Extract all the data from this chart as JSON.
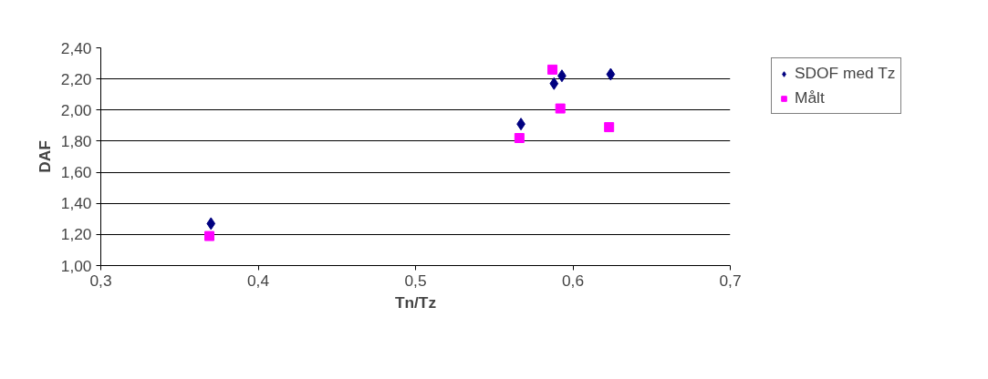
{
  "chart_data": {
    "type": "scatter",
    "xlabel": "Tn/Tz",
    "ylabel": "DAF",
    "xlim": [
      0.3,
      0.7
    ],
    "xticks": [
      {
        "value": 0.3,
        "label": "0,3"
      },
      {
        "value": 0.4,
        "label": "0,4"
      },
      {
        "value": 0.5,
        "label": "0,5"
      },
      {
        "value": 0.6,
        "label": "0,6"
      },
      {
        "value": 0.7,
        "label": "0,7"
      }
    ],
    "ylim": [
      1.0,
      2.4
    ],
    "yticks": [
      {
        "value": 1.0,
        "label": "1,00"
      },
      {
        "value": 1.2,
        "label": "1,20"
      },
      {
        "value": 1.4,
        "label": "1,40"
      },
      {
        "value": 1.6,
        "label": "1,60"
      },
      {
        "value": 1.8,
        "label": "1,80"
      },
      {
        "value": 2.0,
        "label": "2,00"
      },
      {
        "value": 2.2,
        "label": "2,20"
      },
      {
        "value": 2.4,
        "label": "2,40"
      }
    ],
    "grid": "y",
    "legend": "right",
    "series": [
      {
        "name": "SDOF med Tz",
        "color": "#000080",
        "marker": "diamond",
        "x": [
          0.37,
          0.567,
          0.588,
          0.593,
          0.624
        ],
        "values": [
          1.27,
          1.91,
          2.17,
          2.22,
          2.23
        ]
      },
      {
        "name": "Målt",
        "color": "#ff00ff",
        "marker": "square",
        "x": [
          0.369,
          0.566,
          0.587,
          0.592,
          0.623
        ],
        "values": [
          1.19,
          1.82,
          2.26,
          2.01,
          1.89
        ]
      }
    ]
  }
}
